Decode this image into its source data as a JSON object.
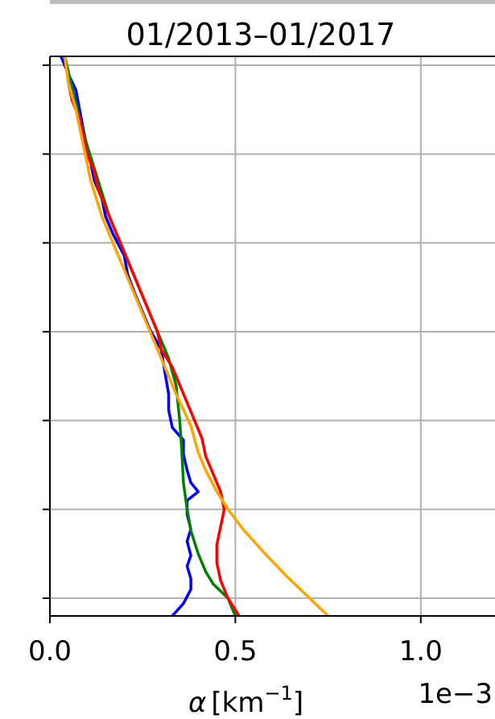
{
  "chart_data": {
    "type": "line",
    "title": "01/2013–01/2017",
    "xlabel": {
      "symbol": "α",
      "unit": "[km",
      "exponent": "−1",
      "close": "]"
    },
    "x_offset_label": "1e−3",
    "xlim": [
      0.0,
      1.2
    ],
    "xticks": [
      {
        "value": 0.0,
        "label": "0.0"
      },
      {
        "value": 0.5,
        "label": "0.5"
      },
      {
        "value": 1.0,
        "label": "1.0"
      }
    ],
    "ylim": [
      0,
      6.3
    ],
    "yticks": [
      0.2,
      1.2,
      2.2,
      3.2,
      4.2,
      5.2,
      6.2
    ],
    "grid": true,
    "series": [
      {
        "color": "#0000ff",
        "points": [
          [
            0.33,
            0.0
          ],
          [
            0.36,
            0.14
          ],
          [
            0.38,
            0.3
          ],
          [
            0.38,
            0.42
          ],
          [
            0.37,
            0.56
          ],
          [
            0.38,
            0.68
          ],
          [
            0.37,
            0.84
          ],
          [
            0.38,
            0.98
          ],
          [
            0.37,
            1.14
          ],
          [
            0.37,
            1.3
          ],
          [
            0.4,
            1.4
          ],
          [
            0.38,
            1.5
          ],
          [
            0.37,
            1.64
          ],
          [
            0.36,
            1.82
          ],
          [
            0.36,
            1.98
          ],
          [
            0.33,
            2.12
          ],
          [
            0.32,
            2.32
          ],
          [
            0.32,
            2.5
          ],
          [
            0.31,
            2.74
          ],
          [
            0.3,
            3.0
          ],
          [
            0.27,
            3.22
          ],
          [
            0.25,
            3.42
          ],
          [
            0.23,
            3.62
          ],
          [
            0.21,
            3.84
          ],
          [
            0.2,
            4.06
          ],
          [
            0.17,
            4.3
          ],
          [
            0.15,
            4.5
          ],
          [
            0.14,
            4.7
          ],
          [
            0.12,
            4.9
          ],
          [
            0.11,
            5.1
          ],
          [
            0.1,
            5.28
          ],
          [
            0.09,
            5.48
          ],
          [
            0.08,
            5.7
          ],
          [
            0.07,
            5.92
          ],
          [
            0.05,
            6.1
          ],
          [
            0.03,
            6.3
          ]
        ]
      },
      {
        "color": "#008000",
        "points": [
          [
            0.5,
            0.0
          ],
          [
            0.48,
            0.2
          ],
          [
            0.44,
            0.36
          ],
          [
            0.42,
            0.5
          ],
          [
            0.4,
            0.7
          ],
          [
            0.38,
            0.96
          ],
          [
            0.37,
            1.2
          ],
          [
            0.36,
            1.5
          ],
          [
            0.355,
            1.9
          ],
          [
            0.35,
            2.2
          ],
          [
            0.34,
            2.6
          ],
          [
            0.32,
            2.9
          ],
          [
            0.28,
            3.3
          ],
          [
            0.24,
            3.7
          ],
          [
            0.2,
            4.1
          ],
          [
            0.16,
            4.5
          ],
          [
            0.13,
            4.9
          ],
          [
            0.1,
            5.3
          ],
          [
            0.08,
            5.6
          ],
          [
            0.06,
            5.95
          ],
          [
            0.04,
            6.3
          ]
        ]
      },
      {
        "color": "#ff0000",
        "points": [
          [
            0.51,
            0.0
          ],
          [
            0.48,
            0.2
          ],
          [
            0.46,
            0.4
          ],
          [
            0.45,
            0.6
          ],
          [
            0.45,
            0.8
          ],
          [
            0.46,
            1.0
          ],
          [
            0.47,
            1.2
          ],
          [
            0.46,
            1.4
          ],
          [
            0.44,
            1.6
          ],
          [
            0.42,
            1.8
          ],
          [
            0.41,
            2.0
          ],
          [
            0.39,
            2.2
          ],
          [
            0.37,
            2.4
          ],
          [
            0.35,
            2.6
          ],
          [
            0.33,
            2.8
          ],
          [
            0.3,
            3.0
          ],
          [
            0.29,
            3.2
          ],
          [
            0.27,
            3.4
          ],
          [
            0.25,
            3.6
          ],
          [
            0.23,
            3.8
          ],
          [
            0.21,
            4.0
          ],
          [
            0.19,
            4.2
          ],
          [
            0.17,
            4.4
          ],
          [
            0.15,
            4.6
          ],
          [
            0.13,
            4.8
          ],
          [
            0.12,
            5.0
          ],
          [
            0.1,
            5.2
          ],
          [
            0.09,
            5.4
          ],
          [
            0.08,
            5.6
          ],
          [
            0.06,
            5.8
          ],
          [
            0.05,
            6.0
          ],
          [
            0.04,
            6.3
          ]
        ]
      },
      {
        "color": "#ffa500",
        "points": [
          [
            0.75,
            0.0
          ],
          [
            0.7,
            0.2
          ],
          [
            0.64,
            0.44
          ],
          [
            0.58,
            0.7
          ],
          [
            0.52,
            0.98
          ],
          [
            0.48,
            1.2
          ],
          [
            0.45,
            1.4
          ],
          [
            0.42,
            1.64
          ],
          [
            0.4,
            1.84
          ],
          [
            0.38,
            2.14
          ],
          [
            0.34,
            2.5
          ],
          [
            0.3,
            2.9
          ],
          [
            0.26,
            3.3
          ],
          [
            0.22,
            3.7
          ],
          [
            0.18,
            4.1
          ],
          [
            0.14,
            4.5
          ],
          [
            0.11,
            4.9
          ],
          [
            0.09,
            5.3
          ],
          [
            0.07,
            5.7
          ],
          [
            0.05,
            6.0
          ],
          [
            0.04,
            6.3
          ]
        ]
      }
    ]
  }
}
